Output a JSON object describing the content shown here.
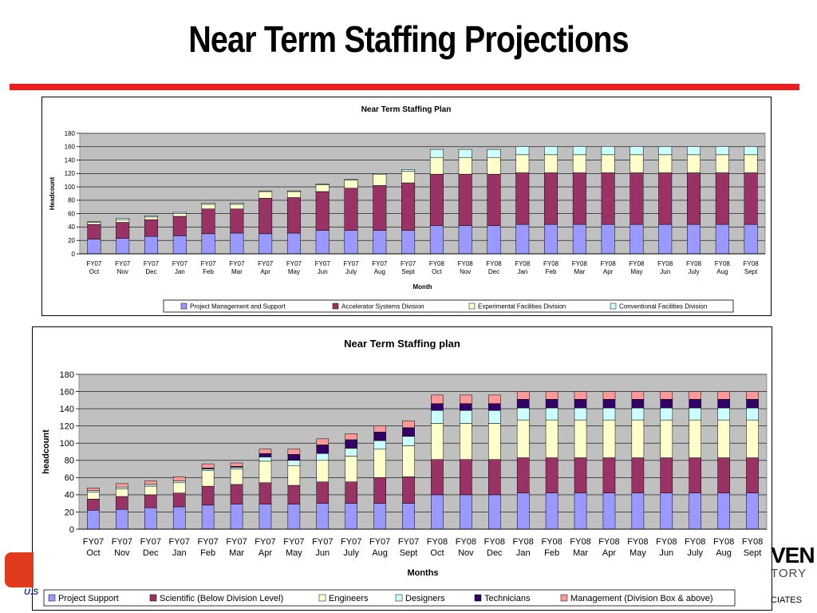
{
  "slide": {
    "title": "Near Term Staffing Projections"
  },
  "logos": {
    "left_text": "U.S",
    "right_line1": "VEN",
    "right_line2": "TORY",
    "right_line3": "CIATES"
  },
  "chart_data": [
    {
      "type": "stacked-bar",
      "title": "Near Term Staffing Plan",
      "xlabel": "Month",
      "ylabel": "Headcount",
      "ylim": [
        0,
        180
      ],
      "yticks": [
        0,
        20,
        40,
        60,
        80,
        100,
        120,
        140,
        160,
        180
      ],
      "grid": true,
      "legend_position": "bottom",
      "categories": [
        [
          "FY07",
          "Oct"
        ],
        [
          "FY07",
          "Nov"
        ],
        [
          "FY07",
          "Dec"
        ],
        [
          "FY07",
          "Jan"
        ],
        [
          "FY07",
          "Feb"
        ],
        [
          "FY07",
          "Mar"
        ],
        [
          "FY07",
          "Apr"
        ],
        [
          "FY07",
          "May"
        ],
        [
          "FY07",
          "Jun"
        ],
        [
          "FY07",
          "July"
        ],
        [
          "FY07",
          "Aug"
        ],
        [
          "FY07",
          "Sept"
        ],
        [
          "FY08",
          "Oct"
        ],
        [
          "FY08",
          "Nov"
        ],
        [
          "FY08",
          "Dec"
        ],
        [
          "FY08",
          "Jan"
        ],
        [
          "FY08",
          "Feb"
        ],
        [
          "FY08",
          "Mar"
        ],
        [
          "FY08",
          "Apr"
        ],
        [
          "FY08",
          "May"
        ],
        [
          "FY08",
          "Jun"
        ],
        [
          "FY08",
          "July"
        ],
        [
          "FY08",
          "Aug"
        ],
        [
          "FY08",
          "Sept"
        ]
      ],
      "series": [
        {
          "name": "Project Management and Support",
          "color": "#9999ff",
          "values": [
            22,
            23,
            26,
            27,
            30,
            31,
            30,
            31,
            35,
            35,
            35,
            35,
            42,
            42,
            42,
            44,
            44,
            44,
            44,
            44,
            44,
            44,
            44,
            44
          ]
        },
        {
          "name": "Accelerator Systems Division",
          "color": "#993366",
          "values": [
            22,
            24,
            25,
            29,
            37,
            36,
            53,
            53,
            58,
            63,
            67,
            71,
            77,
            77,
            77,
            77,
            77,
            77,
            77,
            77,
            77,
            77,
            77,
            77
          ]
        },
        {
          "name": "Experimental Facilities Division",
          "color": "#ffffcc",
          "values": [
            3,
            4,
            4,
            4,
            7,
            7,
            10,
            9,
            10,
            12,
            17,
            17,
            25,
            25,
            25,
            27,
            27,
            27,
            27,
            27,
            27,
            27,
            27,
            27
          ]
        },
        {
          "name": "Conventional Facilities Division",
          "color": "#ccffff",
          "values": [
            1,
            2,
            2,
            2,
            2,
            2,
            1,
            1,
            1,
            1,
            1,
            3,
            12,
            12,
            12,
            12,
            12,
            12,
            12,
            12,
            12,
            12,
            12,
            12
          ]
        }
      ]
    },
    {
      "type": "stacked-bar",
      "title": "Near Term Staffing plan",
      "xlabel": "Months",
      "ylabel": "headcount",
      "ylim": [
        0,
        180
      ],
      "yticks": [
        0,
        20,
        40,
        60,
        80,
        100,
        120,
        140,
        160,
        180
      ],
      "grid": true,
      "legend_position": "bottom",
      "categories": [
        [
          "FY07",
          "Oct"
        ],
        [
          "FY07",
          "Nov"
        ],
        [
          "FY07",
          "Dec"
        ],
        [
          "FY07",
          "Jan"
        ],
        [
          "FY07",
          "Feb"
        ],
        [
          "FY07",
          "Mar"
        ],
        [
          "FY07",
          "Apr"
        ],
        [
          "FY07",
          "May"
        ],
        [
          "FY07",
          "Jun"
        ],
        [
          "FY07",
          "July"
        ],
        [
          "FY07",
          "Aug"
        ],
        [
          "FY07",
          "Sept"
        ],
        [
          "FY08",
          "Oct"
        ],
        [
          "FY08",
          "Nov"
        ],
        [
          "FY08",
          "Dec"
        ],
        [
          "FY08",
          "Jan"
        ],
        [
          "FY08",
          "Feb"
        ],
        [
          "FY08",
          "Mar"
        ],
        [
          "FY08",
          "Apr"
        ],
        [
          "FY08",
          "May"
        ],
        [
          "FY08",
          "Jun"
        ],
        [
          "FY08",
          "July"
        ],
        [
          "FY08",
          "Aug"
        ],
        [
          "FY08",
          "Sept"
        ]
      ],
      "series": [
        {
          "name": "Project Support",
          "color": "#9999ff",
          "values": [
            22,
            23,
            25,
            26,
            28,
            29,
            29,
            29,
            30,
            30,
            30,
            30,
            40,
            40,
            40,
            42,
            42,
            42,
            42,
            42,
            42,
            42,
            42,
            42
          ]
        },
        {
          "name": "Scientific (Below Division Level)",
          "color": "#993366",
          "values": [
            13,
            15,
            15,
            16,
            22,
            23,
            25,
            22,
            25,
            25,
            30,
            31,
            41,
            41,
            41,
            41,
            41,
            41,
            41,
            41,
            41,
            41,
            41,
            41
          ]
        },
        {
          "name": "Engineers",
          "color": "#ffffcc",
          "values": [
            8,
            9,
            10,
            12,
            18,
            18,
            25,
            23,
            25,
            30,
            33,
            36,
            42,
            42,
            42,
            44,
            44,
            44,
            44,
            44,
            44,
            44,
            44,
            44
          ]
        },
        {
          "name": "Designers",
          "color": "#ccffff",
          "values": [
            2,
            2,
            2,
            2,
            2,
            2,
            5,
            6,
            8,
            9,
            10,
            11,
            15,
            15,
            15,
            14,
            14,
            14,
            14,
            14,
            14,
            14,
            14,
            14
          ]
        },
        {
          "name": "Technicians",
          "color": "#330066",
          "values": [
            0,
            0,
            0,
            0,
            1,
            1,
            4,
            7,
            10,
            10,
            10,
            10,
            8,
            8,
            8,
            10,
            10,
            10,
            10,
            10,
            10,
            10,
            10,
            10
          ]
        },
        {
          "name": "Management (Division Box & above)",
          "color": "#ff9999",
          "values": [
            3,
            4,
            4,
            5,
            5,
            4,
            5,
            6,
            7,
            7,
            7,
            8,
            10,
            10,
            10,
            9,
            9,
            9,
            9,
            9,
            9,
            9,
            9,
            9
          ]
        }
      ]
    }
  ]
}
